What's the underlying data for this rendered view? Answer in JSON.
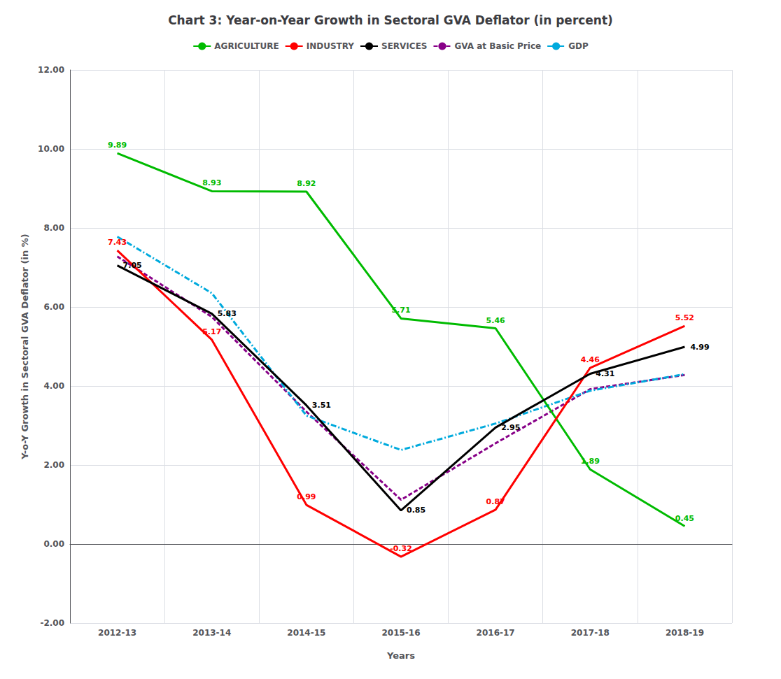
{
  "chart_data": {
    "type": "line",
    "title": "Chart 3: Year-on-Year Growth in Sectoral GVA Deflator (in percent)",
    "x_label": "Years",
    "y_label": "Y-o-Y Growth in Sectoral GVA Deflator (in %)",
    "categories": [
      "2012-13",
      "2013-14",
      "2014-15",
      "2015-16",
      "2016-17",
      "2017-18",
      "2018-19"
    ],
    "series": [
      {
        "name": "AGRICULTURE",
        "color": "#00bb00",
        "line_style": "solid",
        "data_labels": true,
        "values": [
          9.89,
          8.93,
          8.92,
          5.71,
          5.46,
          1.89,
          0.45
        ]
      },
      {
        "name": "INDUSTRY",
        "color": "#ff0000",
        "line_style": "solid",
        "data_labels": true,
        "values": [
          7.43,
          5.17,
          0.99,
          -0.32,
          0.87,
          4.46,
          5.52
        ]
      },
      {
        "name": "SERVICES",
        "color": "#000000",
        "line_style": "solid",
        "data_labels": true,
        "values": [
          7.05,
          5.83,
          3.51,
          0.85,
          2.95,
          4.31,
          4.99
        ]
      },
      {
        "name": "GVA at Basic Price",
        "color": "#880088",
        "line_style": "dashed",
        "data_labels": false,
        "values": [
          7.28,
          5.75,
          3.35,
          1.12,
          2.55,
          3.92,
          4.28
        ]
      },
      {
        "name": "GDP",
        "color": "#00aadd",
        "line_style": "dashdot",
        "data_labels": false,
        "values": [
          7.78,
          6.35,
          3.25,
          2.38,
          3.05,
          3.88,
          4.3
        ]
      }
    ],
    "ylim": [
      -2.0,
      12.0
    ],
    "yticks": [
      {
        "value": -2,
        "label": "-2.00"
      },
      {
        "value": 0,
        "label": "0.00"
      },
      {
        "value": 2,
        "label": "2.00"
      },
      {
        "value": 4,
        "label": "4.00"
      },
      {
        "value": 6,
        "label": "6.00"
      },
      {
        "value": 8,
        "label": "8.00"
      },
      {
        "value": 10,
        "label": "10.00"
      },
      {
        "value": 12,
        "label": "12.00"
      }
    ],
    "grid": true,
    "legend": "top"
  }
}
